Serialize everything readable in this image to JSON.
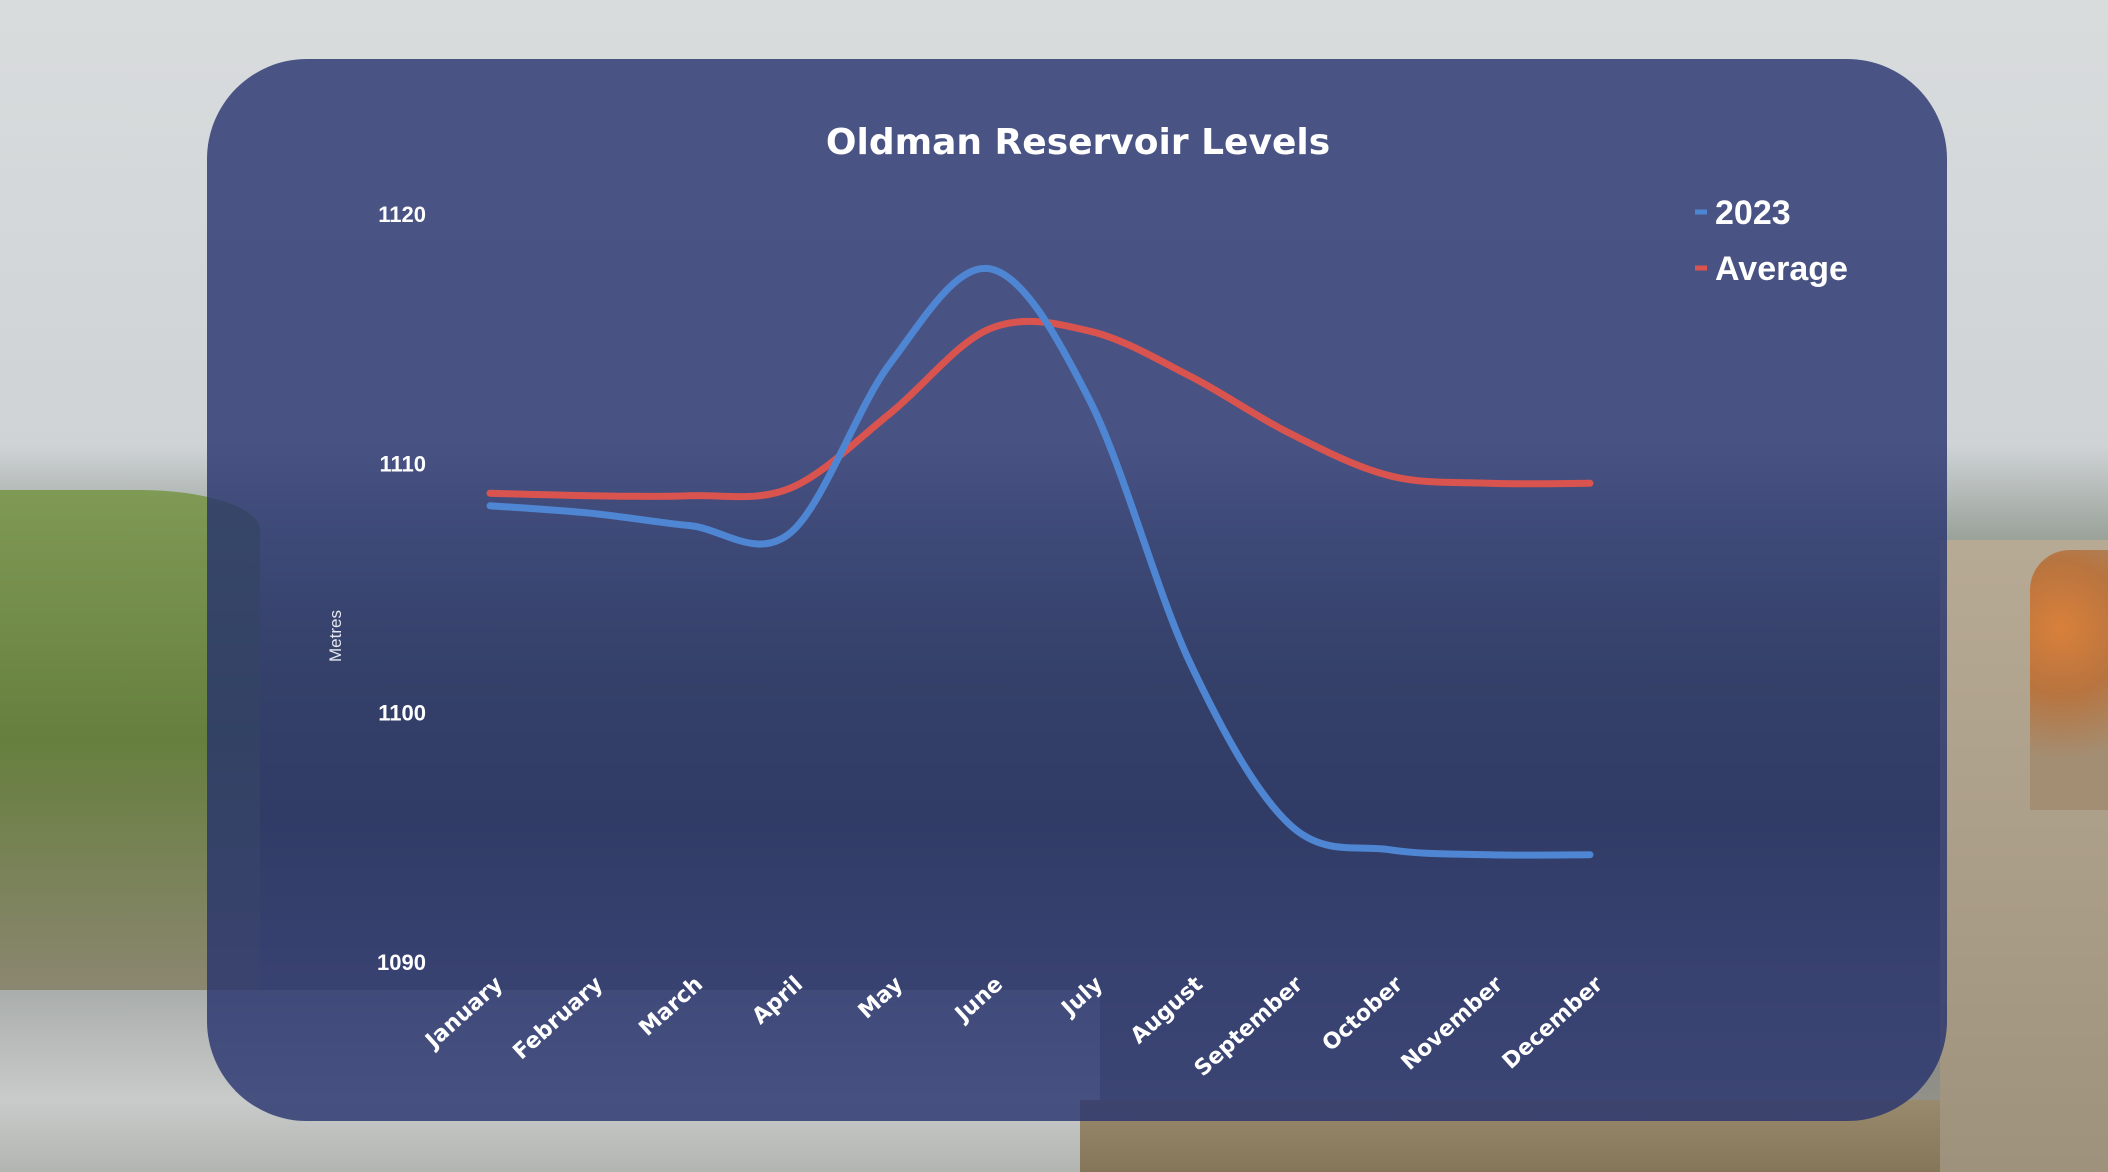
{
  "chart_data": {
    "type": "line",
    "title": "Oldman Reservoir Levels",
    "xlabel": "",
    "ylabel": "Metres",
    "categories": [
      "January",
      "February",
      "March",
      "April",
      "May",
      "June",
      "July",
      "August",
      "September",
      "October",
      "November",
      "December"
    ],
    "y_ticks": [
      "1090",
      "1100",
      "1110",
      "1120"
    ],
    "ylim": [
      1090,
      1120
    ],
    "legend_position": "top-right",
    "grid": false,
    "series": [
      {
        "name": "2023",
        "color": "#4f86d3",
        "values": [
          1108.3,
          1108.0,
          1107.5,
          1107.2,
          1114.0,
          1117.8,
          1112.5,
          1102.0,
          1095.5,
          1094.5,
          1094.3,
          1094.3
        ]
      },
      {
        "name": "Average",
        "color": "#d9534f",
        "values": [
          1108.8,
          1108.7,
          1108.7,
          1109.0,
          1112.0,
          1115.4,
          1115.3,
          1113.5,
          1111.2,
          1109.5,
          1109.2,
          1109.2
        ]
      }
    ]
  }
}
